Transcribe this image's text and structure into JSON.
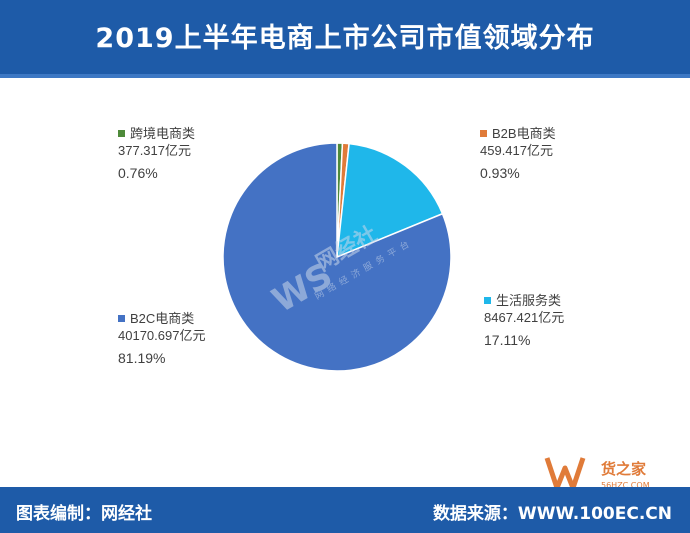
{
  "header": {
    "title": "2019上半年电商上市公司市值领域分布"
  },
  "footer": {
    "credit": "图表编制：网经社",
    "source": "数据来源：WWW.100EC.CN"
  },
  "watermark": {
    "brand": "网经社",
    "mark": "WS",
    "tagline": "网络经济服务平台"
  },
  "logo": {
    "text": "货之家",
    "subtext": "56HZC.COM"
  },
  "colors": {
    "header_bg": "#1e5ba8",
    "b2c": "#4472c4",
    "life": "#1fb7ea",
    "b2b": "#e07b39",
    "cross": "#4e8a3a"
  },
  "chart_data": {
    "type": "pie",
    "title": "2019上半年电商上市公司市值领域分布",
    "slices": [
      {
        "label": "跨境电商类",
        "value_text": "377.317亿元",
        "value": 377.317,
        "percent_text": "0.76%",
        "percent": 0.76,
        "color": "#4e8a3a"
      },
      {
        "label": "B2B电商类",
        "value_text": "459.417亿元",
        "value": 459.417,
        "percent_text": "0.93%",
        "percent": 0.93,
        "color": "#e07b39"
      },
      {
        "label": "生活服务类",
        "value_text": "8467.421亿元",
        "value": 8467.421,
        "percent_text": "17.11%",
        "percent": 17.11,
        "color": "#1fb7ea"
      },
      {
        "label": "B2C电商类",
        "value_text": "40170.697亿元",
        "value": 40170.697,
        "percent_text": "81.19%",
        "percent": 81.19,
        "color": "#4472c4"
      }
    ],
    "unit": "亿元"
  }
}
